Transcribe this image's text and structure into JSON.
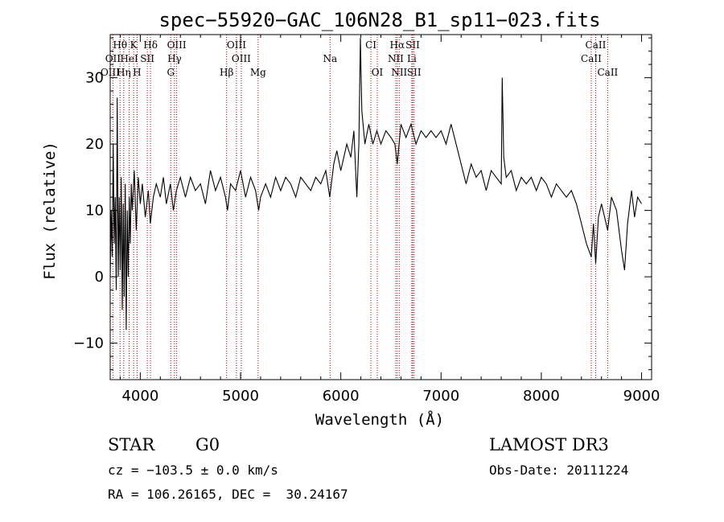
{
  "chart_data": {
    "type": "line",
    "title": "spec−55920−GAC_106N28_B1_sp11−023.fits",
    "xlabel": "Wavelength (Å)",
    "ylabel": "Flux (relative)",
    "xlim": [
      3700,
      9100
    ],
    "ylim": [
      -15.5,
      36.5
    ],
    "xticks": [
      4000,
      5000,
      6000,
      7000,
      8000,
      9000
    ],
    "yticks": [
      -10,
      0,
      10,
      20,
      30
    ],
    "ytick_labels": [
      "−10",
      "0",
      "10",
      "20",
      "30"
    ],
    "grid": false,
    "series": [
      {
        "points": [
          [
            3700,
            0
          ],
          [
            3710,
            10
          ],
          [
            3720,
            3
          ],
          [
            3730,
            20
          ],
          [
            3740,
            5
          ],
          [
            3750,
            12
          ],
          [
            3760,
            -2
          ],
          [
            3770,
            27
          ],
          [
            3780,
            0
          ],
          [
            3790,
            12
          ],
          [
            3800,
            1
          ],
          [
            3810,
            15
          ],
          [
            3820,
            -5
          ],
          [
            3830,
            11
          ],
          [
            3840,
            -3
          ],
          [
            3850,
            14
          ],
          [
            3860,
            -8
          ],
          [
            3870,
            10
          ],
          [
            3880,
            0
          ],
          [
            3890,
            12
          ],
          [
            3900,
            5
          ],
          [
            3910,
            14
          ],
          [
            3920,
            10
          ],
          [
            3940,
            16
          ],
          [
            3960,
            7
          ],
          [
            3980,
            15
          ],
          [
            4000,
            11
          ],
          [
            4020,
            14
          ],
          [
            4050,
            9
          ],
          [
            4080,
            13
          ],
          [
            4100,
            8
          ],
          [
            4130,
            12
          ],
          [
            4160,
            14
          ],
          [
            4200,
            12
          ],
          [
            4230,
            15
          ],
          [
            4260,
            11
          ],
          [
            4300,
            14
          ],
          [
            4330,
            10
          ],
          [
            4360,
            13
          ],
          [
            4400,
            15
          ],
          [
            4450,
            12
          ],
          [
            4500,
            15
          ],
          [
            4550,
            13
          ],
          [
            4600,
            14
          ],
          [
            4650,
            11
          ],
          [
            4700,
            16
          ],
          [
            4750,
            13
          ],
          [
            4800,
            15
          ],
          [
            4850,
            12
          ],
          [
            4870,
            10
          ],
          [
            4900,
            14
          ],
          [
            4950,
            13
          ],
          [
            5000,
            16
          ],
          [
            5050,
            12
          ],
          [
            5100,
            15
          ],
          [
            5150,
            13
          ],
          [
            5180,
            10
          ],
          [
            5200,
            12
          ],
          [
            5250,
            14
          ],
          [
            5300,
            12
          ],
          [
            5350,
            15
          ],
          [
            5400,
            13
          ],
          [
            5450,
            15
          ],
          [
            5500,
            14
          ],
          [
            5550,
            12
          ],
          [
            5600,
            15
          ],
          [
            5650,
            14
          ],
          [
            5700,
            13
          ],
          [
            5750,
            15
          ],
          [
            5800,
            14
          ],
          [
            5850,
            16
          ],
          [
            5890,
            12
          ],
          [
            5930,
            17
          ],
          [
            5960,
            19
          ],
          [
            6000,
            16
          ],
          [
            6030,
            18
          ],
          [
            6060,
            20
          ],
          [
            6100,
            18
          ],
          [
            6130,
            22
          ],
          [
            6160,
            12
          ],
          [
            6180,
            20
          ],
          [
            6195,
            36
          ],
          [
            6210,
            25
          ],
          [
            6240,
            20
          ],
          [
            6280,
            23
          ],
          [
            6320,
            20
          ],
          [
            6360,
            22
          ],
          [
            6400,
            20
          ],
          [
            6450,
            22
          ],
          [
            6500,
            21
          ],
          [
            6540,
            20
          ],
          [
            6563,
            17
          ],
          [
            6600,
            23
          ],
          [
            6650,
            21
          ],
          [
            6700,
            23
          ],
          [
            6750,
            20
          ],
          [
            6800,
            22
          ],
          [
            6850,
            21
          ],
          [
            6900,
            22
          ],
          [
            6950,
            21
          ],
          [
            7000,
            22
          ],
          [
            7050,
            20
          ],
          [
            7100,
            23
          ],
          [
            7150,
            20
          ],
          [
            7200,
            17
          ],
          [
            7250,
            14
          ],
          [
            7300,
            17
          ],
          [
            7350,
            15
          ],
          [
            7400,
            16
          ],
          [
            7450,
            13
          ],
          [
            7500,
            16
          ],
          [
            7550,
            15
          ],
          [
            7600,
            14
          ],
          [
            7610,
            30
          ],
          [
            7625,
            18
          ],
          [
            7650,
            15
          ],
          [
            7700,
            16
          ],
          [
            7750,
            13
          ],
          [
            7800,
            15
          ],
          [
            7850,
            14
          ],
          [
            7900,
            15
          ],
          [
            7950,
            13
          ],
          [
            8000,
            15
          ],
          [
            8050,
            14
          ],
          [
            8100,
            12
          ],
          [
            8150,
            14
          ],
          [
            8200,
            13
          ],
          [
            8250,
            12
          ],
          [
            8300,
            13
          ],
          [
            8350,
            11
          ],
          [
            8400,
            8
          ],
          [
            8450,
            5
          ],
          [
            8498,
            3
          ],
          [
            8520,
            8
          ],
          [
            8542,
            2
          ],
          [
            8570,
            9
          ],
          [
            8600,
            11
          ],
          [
            8662,
            7
          ],
          [
            8700,
            12
          ],
          [
            8750,
            10
          ],
          [
            8800,
            4
          ],
          [
            8830,
            1
          ],
          [
            8860,
            8
          ],
          [
            8900,
            13
          ],
          [
            8930,
            9
          ],
          [
            8960,
            12
          ],
          [
            9000,
            11
          ]
        ]
      }
    ],
    "line_marks": [
      {
        "label": "Hθ",
        "w": 3798,
        "row": 0
      },
      {
        "label": "K",
        "w": 3934,
        "row": 0
      },
      {
        "label": "Hδ",
        "w": 4102,
        "row": 0
      },
      {
        "label": "OIII",
        "w": 4363,
        "row": 0
      },
      {
        "label": "OIII",
        "w": 4959,
        "row": 0
      },
      {
        "label": "CI",
        "w": 6300,
        "row": 0
      },
      {
        "label": "Hα",
        "w": 6563,
        "row": 0
      },
      {
        "label": "SII",
        "w": 6717,
        "row": 0
      },
      {
        "label": "CaII",
        "w": 8542,
        "row": 0
      },
      {
        "label": "OII",
        "w": 3727,
        "row": 1
      },
      {
        "label": "HeI",
        "w": 3889,
        "row": 1
      },
      {
        "label": "SII",
        "w": 4070,
        "row": 1
      },
      {
        "label": "Hγ",
        "w": 4341,
        "row": 1
      },
      {
        "label": "OIII",
        "w": 5007,
        "row": 1
      },
      {
        "label": "Na",
        "w": 5893,
        "row": 1
      },
      {
        "label": "NII",
        "w": 6548,
        "row": 1
      },
      {
        "label": "Li",
        "w": 6708,
        "row": 1
      },
      {
        "label": "CaII",
        "w": 8498,
        "row": 1
      },
      {
        "label": "OIII",
        "w": 3700,
        "row": 2
      },
      {
        "label": "Hη",
        "w": 3835,
        "row": 2
      },
      {
        "label": "H",
        "w": 3968,
        "row": 2
      },
      {
        "label": "G",
        "w": 4304,
        "row": 2
      },
      {
        "label": "Hβ",
        "w": 4861,
        "row": 2
      },
      {
        "label": "Mg",
        "w": 5175,
        "row": 2
      },
      {
        "label": "OI",
        "w": 6364,
        "row": 2
      },
      {
        "label": "NII",
        "w": 6583,
        "row": 2
      },
      {
        "label": "SII",
        "w": 6731,
        "row": 2
      },
      {
        "label": "CaII",
        "w": 8662,
        "row": 2
      }
    ]
  },
  "info": {
    "class_label": "STAR",
    "subclass": "G0",
    "survey": "LAMOST DR3",
    "redshift_line": "cz = −103.5 ± 0.0 km/s",
    "obs_date": "Obs-Date: 20111224",
    "coords": "RA = 106.26165, DEC =  30.24167"
  }
}
